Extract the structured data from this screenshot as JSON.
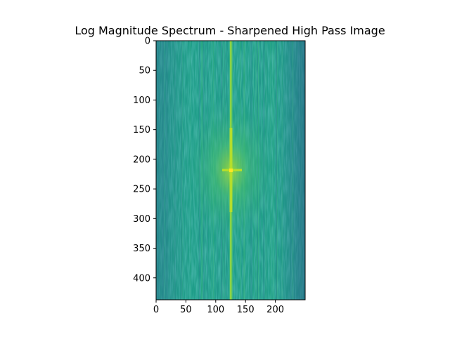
{
  "chart_data": {
    "type": "heatmap",
    "title": "Log Magnitude Spectrum - Sharpened High Pass Image",
    "xlabel": "",
    "ylabel": "",
    "image_width": 250,
    "image_height": 437,
    "xlim": [
      0,
      250
    ],
    "ylim": [
      437,
      0
    ],
    "x_ticks": [
      0,
      50,
      100,
      150,
      200
    ],
    "y_ticks": [
      0,
      50,
      100,
      150,
      200,
      250,
      300,
      350,
      400
    ],
    "colormap": "viridis",
    "peak_center": [
      125,
      218
    ],
    "grid": false,
    "colors": {
      "low": "#3b6a8e",
      "mid": "#1f9e89",
      "high": "#b5de2b",
      "peak": "#fde725"
    }
  }
}
